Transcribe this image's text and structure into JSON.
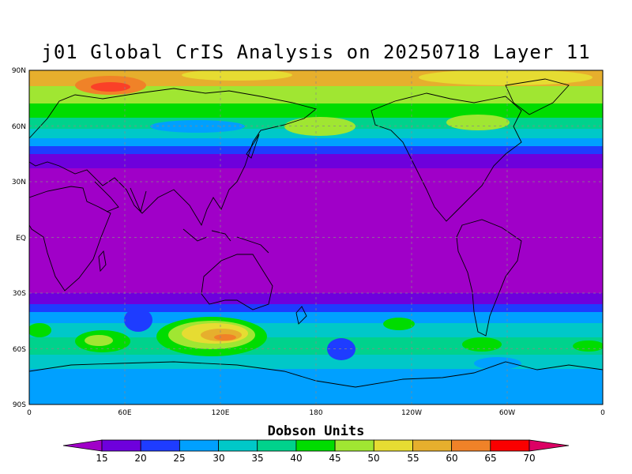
{
  "title": "j01 Global CrIS Analysis on 20250718 Layer 11",
  "map": {
    "lat_labels": [
      "90N",
      "60N",
      "30N",
      "EQ",
      "30S",
      "60S",
      "90S"
    ],
    "lon_labels": [
      "0",
      "60E",
      "120E",
      "180",
      "120W",
      "60W",
      "0"
    ],
    "grid_style": "dashed",
    "projection": "equirectangular"
  },
  "colorbar": {
    "title": "Dobson Units",
    "labels": [
      "15",
      "20",
      "25",
      "30",
      "35",
      "40",
      "45",
      "50",
      "55",
      "60",
      "65",
      "70"
    ],
    "colors": [
      "#a000c8",
      "#6e00dc",
      "#1e3cff",
      "#00a0ff",
      "#00c8c8",
      "#00d28c",
      "#00dc00",
      "#a0e632",
      "#e6dc32",
      "#e6af2d",
      "#f08228",
      "#fa0000",
      "#dc0064"
    ]
  },
  "chart_data": {
    "type": "heatmap",
    "title": "j01 Global CrIS Analysis on 20250718 Layer 11",
    "x_ticks": [
      "0",
      "60E",
      "120E",
      "180",
      "120W",
      "60W",
      "0"
    ],
    "y_ticks": [
      "90N",
      "60N",
      "30N",
      "EQ",
      "30S",
      "60S",
      "90S"
    ],
    "colorbar_label": "Dobson Units",
    "value_range": [
      15,
      70
    ],
    "zonal_structure": [
      {
        "lat_band": "65N-90N",
        "approx_du": "45-60"
      },
      {
        "lat_band": "45N-65N",
        "approx_du": "30-50"
      },
      {
        "lat_band": "35N-45N",
        "approx_du": "20-30"
      },
      {
        "lat_band": "35S-35N",
        "approx_du": "<15"
      },
      {
        "lat_band": "35S-45S",
        "approx_du": "20-30"
      },
      {
        "lat_band": "45S-70S",
        "approx_du": "30-50"
      },
      {
        "lat_band": "70S-90S",
        "approx_du": "30-40"
      }
    ],
    "notable_maxima": [
      {
        "location": "south of Australia (~120E-135E, 50S-55S)",
        "approx_du": "55-65"
      },
      {
        "location": "Arctic north of Europe (~60E-90E, 83N)",
        "approx_du": "60-65"
      }
    ]
  }
}
